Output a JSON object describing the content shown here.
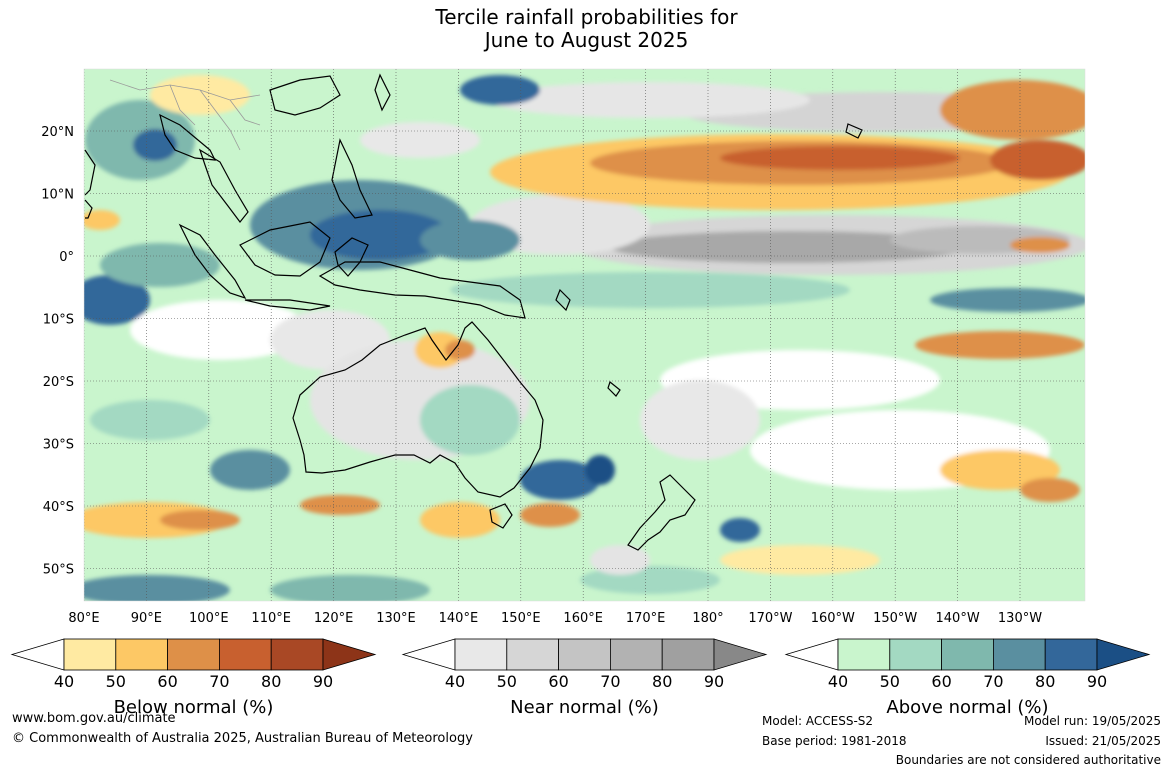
{
  "title": {
    "line1": "Tercile rainfall probabilities for",
    "line2": "June to August 2025"
  },
  "map": {
    "lat_labels": [
      "20°N",
      "10°N",
      "0°",
      "10°S",
      "20°S",
      "30°S",
      "40°S",
      "50°S"
    ],
    "lon_labels": [
      "80°E",
      "90°E",
      "100°E",
      "110°E",
      "120°E",
      "130°E",
      "140°E",
      "150°E",
      "160°E",
      "170°E",
      "180°",
      "170°W",
      "160°W",
      "150°W",
      "140°W",
      "130°W"
    ],
    "colors": {
      "land_outline": "#000000",
      "base_green": "#c9f5cd",
      "white_patch": "#ffffff"
    }
  },
  "colorbars": [
    {
      "title": "Below normal (%)",
      "ticks": [
        "40",
        "50",
        "60",
        "70",
        "80",
        "90"
      ],
      "colors": [
        "#ffeaa2",
        "#fdc865",
        "#de9048",
        "#c8602f",
        "#a94825",
        "#8d3418"
      ]
    },
    {
      "title": "Near normal (%)",
      "ticks": [
        "40",
        "50",
        "60",
        "70",
        "80",
        "90"
      ],
      "colors": [
        "#e8e8e8",
        "#d6d6d6",
        "#c4c4c4",
        "#b2b2b2",
        "#a0a0a0",
        "#888888"
      ]
    },
    {
      "title": "Above normal (%)",
      "ticks": [
        "40",
        "50",
        "60",
        "70",
        "80",
        "90"
      ],
      "colors": [
        "#c9f5cd",
        "#a3d9c2",
        "#7fb8ad",
        "#5a8fa0",
        "#33679a",
        "#1b4f85"
      ]
    }
  ],
  "footer": {
    "url": "www.bom.gov.au/climate",
    "copyright": "© Commonwealth of Australia 2025, Australian Bureau of Meteorology",
    "model": "Model: ACCESS-S2",
    "base_period": "Base period: 1981-2018",
    "model_run": "Model run: 19/05/2025",
    "issued": "Issued: 21/05/2025",
    "boundaries": "Boundaries are not considered authoritative"
  }
}
